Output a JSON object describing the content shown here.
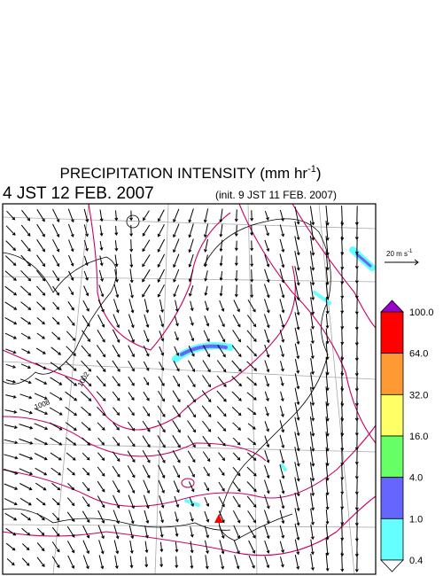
{
  "header": {
    "title": "PRECIPITATION INTENSITY (mm hr",
    "title_exponent": "-1",
    "title_close": ")",
    "valid_time": "4 JST 12 FEB. 2007",
    "init_time": "(init. 9 JST 11 FEB. 2007)"
  },
  "wind_scale": {
    "label": "20 m s",
    "exponent": "-1"
  },
  "colorbar": {
    "levels": [
      "100.0",
      "64.0",
      "32.0",
      "16.0",
      "4.0",
      "1.0",
      "0.4"
    ],
    "colors": [
      "#9900cc",
      "#ff0000",
      "#ff9933",
      "#ffff66",
      "#66ff66",
      "#6666ff",
      "#66ffff",
      "#ffffff"
    ]
  },
  "map": {
    "contour_labels": [
      "1002",
      "1008"
    ]
  }
}
